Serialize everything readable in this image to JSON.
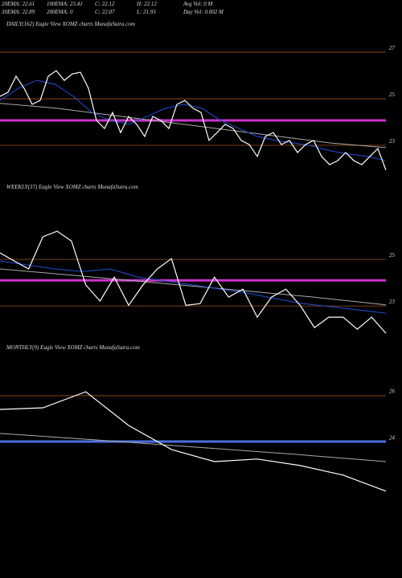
{
  "header": {
    "row1": [
      "20EMA: 22.61",
      "100EMA: 23.41",
      "C: 22.12",
      "H: 22.12",
      "Avg Vol: 0  M"
    ],
    "row2": [
      "30EMA: 22.89",
      "200EMA: 0",
      "C: 22.07",
      "L: 21.93",
      "Day Vol: 0.002  M"
    ]
  },
  "chart_data": [
    {
      "type": "line",
      "title": "DAILY(162) Eagle   View  XOMZ charts MunafaSutra.com",
      "ylim": [
        21.31,
        28.21
      ],
      "yticks": [
        27,
        25,
        23
      ],
      "grid": true,
      "grid_color": "#a0521a",
      "levels": [
        {
          "value": 24.07,
          "color": "#cc33cc"
        }
      ],
      "series": [
        {
          "name": null,
          "color": "#aaaaaa",
          "values": [
            24.8,
            24.6,
            24.3,
            24.0,
            23.7,
            23.4,
            23.1,
            22.9
          ]
        },
        {
          "name": null,
          "color": "#1f4fd8",
          "values": [
            24.93,
            25.45,
            25.79,
            25.62,
            25.1,
            24.41,
            24.07,
            23.9,
            24.24,
            24.59,
            24.76,
            24.59,
            24.07,
            23.72,
            23.38,
            23.21,
            23.1,
            22.97,
            22.76,
            22.62,
            22.52,
            22.34
          ]
        },
        {
          "name": null,
          "color": "#ffffff",
          "values": [
            25.1,
            25.28,
            25.97,
            25.45,
            24.76,
            24.93,
            25.97,
            26.21,
            25.79,
            26.07,
            26.14,
            25.45,
            24.07,
            23.72,
            24.41,
            23.55,
            24.24,
            23.9,
            23.38,
            24.24,
            24.07,
            23.72,
            24.76,
            24.93,
            24.59,
            24.41,
            23.21,
            23.55,
            23.9,
            23.72,
            23.21,
            23.03,
            22.52,
            23.38,
            23.55,
            23.03,
            23.21,
            22.69,
            23.03,
            23.21,
            22.52,
            22.17,
            22.34,
            22.69,
            22.34,
            22.17,
            22.52,
            22.86,
            21.93
          ]
        }
      ]
    },
    {
      "type": "line",
      "title": "WEEKLY(37) Eagle   View  XOMZ charts MunafaSutra.com",
      "ylim": [
        21.66,
        28.21
      ],
      "yticks": [
        25,
        23
      ],
      "grid": true,
      "grid_color": "#a0521a",
      "levels": [
        {
          "value": 24.1,
          "color": "#cc33cc"
        }
      ],
      "series": [
        {
          "name": null,
          "color": "#aaaaaa",
          "values": [
            24.59,
            24.3,
            24.0,
            23.7,
            23.4,
            23.05
          ]
        },
        {
          "name": null,
          "color": "#1f4fd8",
          "values": [
            24.93,
            24.76,
            24.59,
            24.48,
            24.59,
            24.24,
            24.07,
            23.9,
            23.72,
            23.55,
            23.31,
            23.1,
            22.97,
            22.83,
            22.69
          ]
        },
        {
          "name": null,
          "color": "#ffffff",
          "values": [
            25.28,
            24.93,
            24.59,
            25.97,
            26.21,
            25.79,
            23.9,
            23.21,
            24.24,
            23.03,
            23.9,
            24.59,
            25.03,
            23.03,
            23.1,
            24.24,
            23.38,
            23.72,
            22.52,
            23.38,
            23.72,
            23.03,
            22.07,
            22.52,
            22.52,
            22.0,
            22.52,
            21.83
          ]
        }
      ]
    },
    {
      "type": "line",
      "title": "MONTHLY(9) Eagle   View  XOMZ charts MunafaSutra.com",
      "ylim": [
        18.34,
        28.17
      ],
      "yticks": [
        26,
        24
      ],
      "grid": true,
      "grid_color": "#a0521a",
      "levels": [
        {
          "value": 24.03,
          "color": "#4a6fe0"
        }
      ],
      "series": [
        {
          "name": null,
          "color": "#aaaaaa",
          "values": [
            24.38,
            24.1,
            23.8,
            23.5,
            23.17
          ]
        },
        {
          "name": null,
          "color": "#ffffff",
          "values": [
            25.41,
            25.48,
            26.17,
            24.72,
            23.69,
            23.17,
            23.28,
            23.0,
            22.59,
            21.9
          ]
        }
      ]
    }
  ]
}
